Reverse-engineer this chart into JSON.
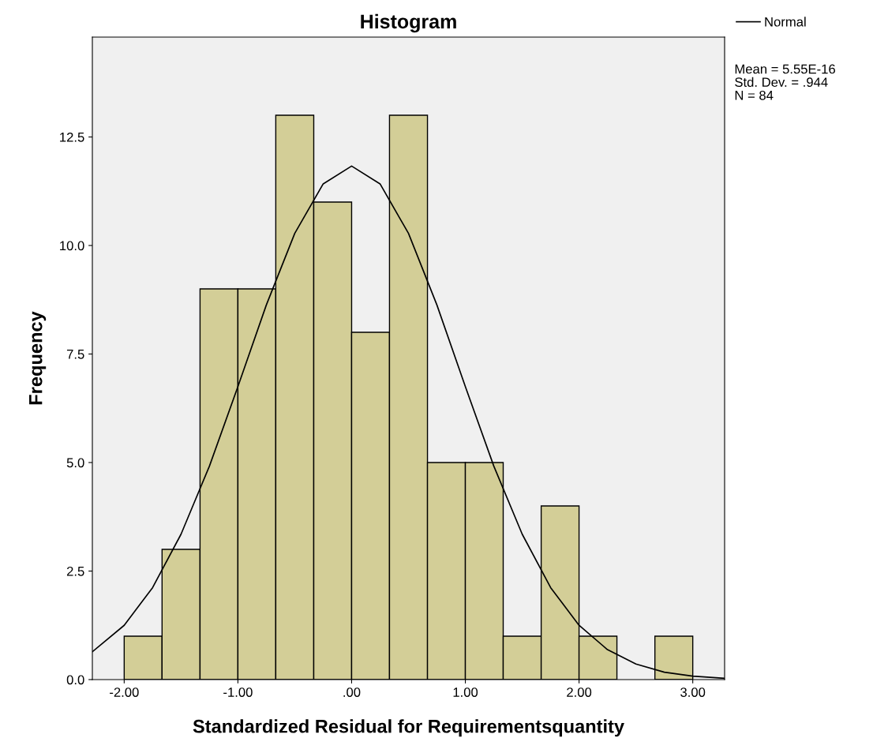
{
  "chart_data": {
    "type": "histogram",
    "title": "Histogram",
    "xlabel": "Standardized Residual for Requirementsquantity",
    "ylabel": "Frequency",
    "bins": [
      -2.0,
      -1.667,
      -1.333,
      -1.0,
      -0.667,
      -0.333,
      0.0,
      0.333,
      0.667,
      1.0,
      1.333,
      1.667,
      2.0,
      2.333,
      2.667,
      3.0
    ],
    "values": [
      1,
      3,
      9,
      9,
      13,
      11,
      8,
      13,
      5,
      5,
      1,
      4,
      1,
      0,
      1
    ],
    "color": "#d3ce97",
    "series": [
      {
        "name": "Normal",
        "type": "line",
        "color": "#000000",
        "x": [
          -2.28,
          -2.0,
          -1.75,
          -1.5,
          -1.25,
          -1.0,
          -0.75,
          -0.5,
          -0.25,
          0.0,
          0.25,
          0.5,
          0.75,
          1.0,
          1.25,
          1.5,
          1.75,
          2.0,
          2.25,
          2.5,
          2.75,
          3.0,
          3.28
        ],
        "values": [
          0.64,
          1.25,
          2.12,
          3.35,
          4.92,
          6.75,
          8.63,
          10.28,
          11.42,
          11.83,
          11.42,
          10.28,
          8.63,
          6.75,
          4.92,
          3.35,
          2.12,
          1.25,
          0.69,
          0.36,
          0.17,
          0.08,
          0.03
        ]
      }
    ],
    "xlim": [
      -2.28,
      3.28
    ],
    "xticks": [
      {
        "value": -2,
        "label": "-2.00"
      },
      {
        "value": -1,
        "label": "-1.00"
      },
      {
        "value": 0,
        "label": ".00"
      },
      {
        "value": 1,
        "label": "1.00"
      },
      {
        "value": 2,
        "label": "2.00"
      },
      {
        "value": 3,
        "label": "3.00"
      }
    ],
    "ylim": [
      0,
      14.8
    ],
    "yticks": [
      {
        "value": 0,
        "label": "0.0"
      },
      2.5,
      {
        "value": 5,
        "label": "5.0"
      },
      7.5,
      {
        "value": 10,
        "label": "10.0"
      },
      12.5
    ],
    "annotations": [
      "Mean = 5.55E-16",
      "Std. Dev. = .944",
      "N = 84"
    ],
    "legend": "top right",
    "grid": false,
    "marker": "none",
    "line_style": "solid"
  }
}
